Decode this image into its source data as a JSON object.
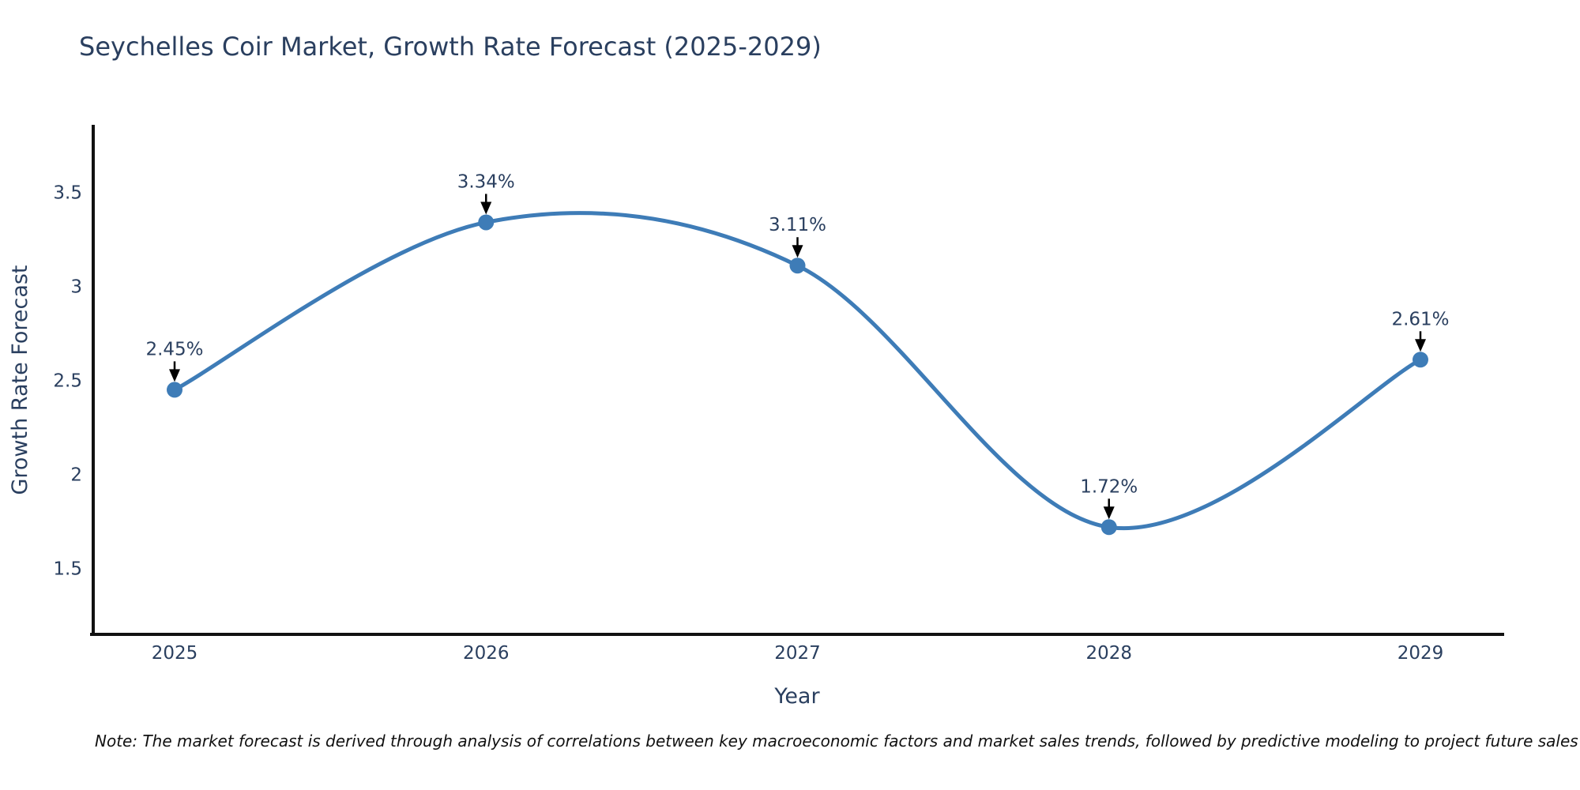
{
  "title": "Seychelles Coir Market, Growth Rate Forecast (2025-2029)",
  "note": "Note: The market forecast is derived through analysis of correlations between key macroeconomic factors and market sales trends, followed by predictive modeling to project future sales",
  "chart_data": {
    "type": "line",
    "line_shape": "spline",
    "title": "Seychelles Coir Market, Growth Rate Forecast (2025-2029)",
    "xlabel": "Year",
    "ylabel": "Growth Rate Forecast",
    "x": [
      2025,
      2026,
      2027,
      2028,
      2029
    ],
    "series": [
      {
        "name": "Growth Rate Forecast",
        "values": [
          2.45,
          3.34,
          3.11,
          1.72,
          2.61
        ]
      }
    ],
    "point_labels": [
      "2.45%",
      "3.34%",
      "3.11%",
      "1.72%",
      "2.61%"
    ],
    "yticks": [
      1.5,
      2,
      2.5,
      3,
      3.5
    ],
    "ylim": [
      1.15,
      3.85
    ],
    "grid": false,
    "legend": "none",
    "markers": true,
    "annotation_arrows": true,
    "colors": {
      "line": "#3E7CB7",
      "marker": "#3E7CB7",
      "text": "#2a3f5f",
      "axis": "#111111",
      "arrow": "#000000",
      "background": "#ffffff"
    }
  }
}
